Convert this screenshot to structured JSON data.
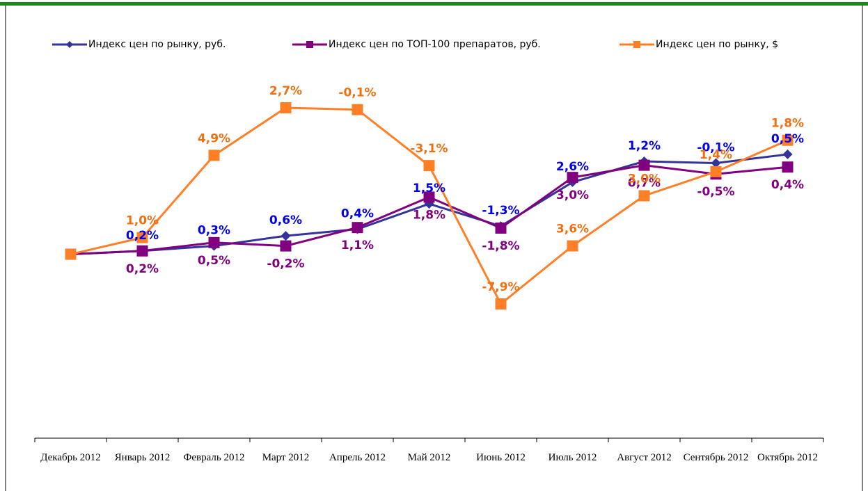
{
  "chart_data": {
    "type": "line",
    "categories": [
      "Декабрь 2012",
      "Январь 2012",
      "Февраль 2012",
      "Март 2012",
      "Апрель 2012",
      "Май 2012",
      "Июнь 2012",
      "Июль 2012",
      "Август 2012",
      "Сентябрь 2012",
      "Октябрь 2012"
    ],
    "series": [
      {
        "name": "Индекс цен по рынку, руб.",
        "color": "#333399",
        "label_color": "#0000ee",
        "marker": "diamond",
        "values": [
          0,
          0.2,
          0.3,
          0.6,
          0.4,
          1.5,
          -1.3,
          2.6,
          1.2,
          -0.1,
          0.5
        ],
        "value_labels": [
          null,
          "0,2%",
          "0,3%",
          "0,6%",
          "0,4%",
          "1,5%",
          "-1,3%",
          "2,6%",
          "1,2%",
          "-0,1%",
          "0,5%"
        ]
      },
      {
        "name": "Индекс цен по ТОП-100 препаратов, руб.",
        "color": "#800080",
        "label_color": "#800080",
        "marker": "square",
        "values": [
          0,
          0.2,
          0.5,
          -0.2,
          1.1,
          1.8,
          -1.8,
          3.0,
          0.7,
          -0.5,
          0.4
        ],
        "value_labels": [
          null,
          "0,2%",
          "0,5%",
          "-0,2%",
          "1,1%",
          "1,8%",
          "-1,8%",
          "3,0%",
          "0,7%",
          "-0,5%",
          "0,4%"
        ]
      },
      {
        "name": "Индекс цен по рынку, $",
        "color": "#ff7f27",
        "label_color": "#f07010",
        "marker": "square",
        "values": [
          0,
          1.0,
          4.9,
          2.7,
          -0.1,
          -3.1,
          -7.9,
          3.6,
          3.0,
          1.4,
          1.8
        ],
        "value_labels": [
          null,
          "1,0%",
          "4,9%",
          "2,7%",
          "-0,1%",
          "-3,1%",
          "-7,9%",
          "3,6%",
          "3,0%",
          "1,4%",
          "1,8%"
        ]
      }
    ],
    "legend": "top"
  }
}
